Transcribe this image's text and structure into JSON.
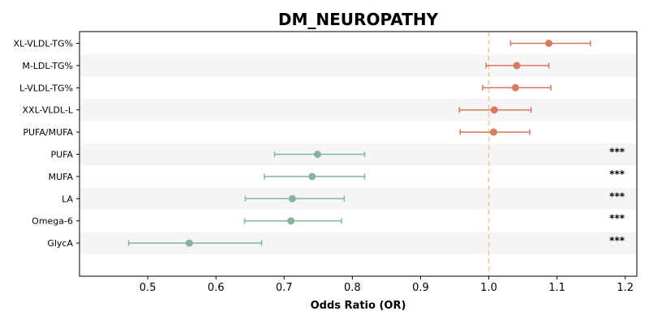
{
  "chart_data": {
    "type": "forest",
    "title": "DM_NEUROPATHY",
    "xlabel": "Odds Ratio (OR)",
    "xlim": [
      0.4,
      1.217
    ],
    "xticks": [
      0.5,
      0.6,
      0.7,
      0.8,
      0.9,
      1.0,
      1.1,
      1.2
    ],
    "xtick_labels": [
      "0.5",
      "0.6",
      "0.7",
      "0.8",
      "0.9",
      "1.0",
      "1.1",
      "1.2"
    ],
    "reference_line": 1.0,
    "colors": {
      "positive": "#d9795e",
      "negative": "#84b49a",
      "reference": "#f5c48a",
      "band": "#f5f5f5"
    },
    "rows": [
      {
        "label": "XL-VLDL-TG%",
        "or": 1.088,
        "lo": 1.032,
        "hi": 1.149,
        "sig": ""
      },
      {
        "label": "M-LDL-TG%",
        "or": 1.041,
        "lo": 0.996,
        "hi": 1.088,
        "sig": ""
      },
      {
        "label": "L-VLDL-TG%",
        "or": 1.039,
        "lo": 0.991,
        "hi": 1.091,
        "sig": ""
      },
      {
        "label": "XXL-VLDL-L",
        "or": 1.008,
        "lo": 0.957,
        "hi": 1.062,
        "sig": ""
      },
      {
        "label": "PUFA/MUFA",
        "or": 1.007,
        "lo": 0.958,
        "hi": 1.06,
        "sig": ""
      },
      {
        "label": "PUFA",
        "or": 0.749,
        "lo": 0.686,
        "hi": 0.818,
        "sig": "***"
      },
      {
        "label": "MUFA",
        "or": 0.741,
        "lo": 0.671,
        "hi": 0.818,
        "sig": "***"
      },
      {
        "label": "LA",
        "or": 0.712,
        "lo": 0.643,
        "hi": 0.788,
        "sig": "***"
      },
      {
        "label": "Omega-6",
        "or": 0.71,
        "lo": 0.642,
        "hi": 0.784,
        "sig": "***"
      },
      {
        "label": "GlycA",
        "or": 0.561,
        "lo": 0.472,
        "hi": 0.667,
        "sig": "***"
      }
    ]
  }
}
